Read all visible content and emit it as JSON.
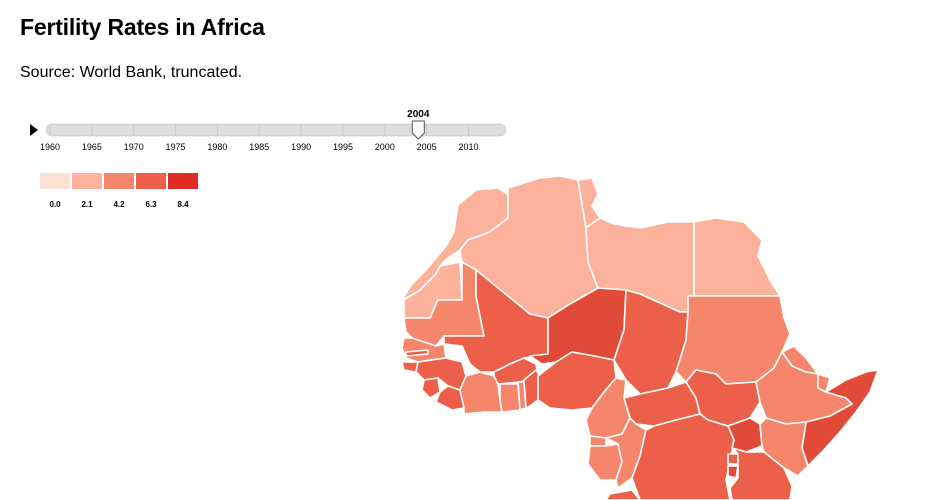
{
  "title": "Fertility Rates in Africa",
  "subtitle": "Source: World Bank, truncated.",
  "timeline": {
    "play_icon": "play-triangle-icon",
    "current_year": "2004",
    "year_min": 1960,
    "year_max": 2014,
    "tick_labels": [
      "1960",
      "1965",
      "1970",
      "1975",
      "1980",
      "1985",
      "1990",
      "1995",
      "2000",
      "2005",
      "2010"
    ]
  },
  "legend": {
    "labels": [
      "0.0",
      "2.1",
      "4.2",
      "6.3",
      "8.4"
    ],
    "colors": [
      "#fee0d2",
      "#fcb19b",
      "#f5866c",
      "#ec5f48",
      "#de2d26"
    ]
  },
  "colors": {
    "track": "#dddddd",
    "track_stroke": "#bbbbbb",
    "border": "#ffffff"
  }
}
